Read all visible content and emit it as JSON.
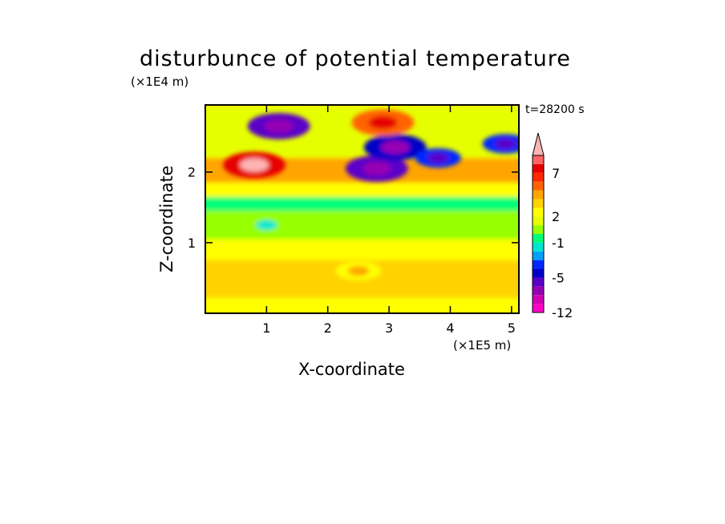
{
  "chart_data": {
    "type": "heatmap",
    "title": "disturbunce of potential temperature",
    "xlabel": "X-coordinate",
    "ylabel": "Z-coordinate",
    "x_unit": "(×1E5 m)",
    "y_unit": "(×1E4 m)",
    "time_label": "t=28200 s",
    "xlim": [
      0,
      5.12
    ],
    "ylim": [
      0,
      2.95
    ],
    "x_ticks": [
      "1",
      "2",
      "3",
      "4",
      "5"
    ],
    "y_ticks": [
      "1",
      "2"
    ],
    "colorbar": {
      "extend": "max",
      "levels": [
        -12,
        -10,
        -8,
        -6,
        -5,
        -4,
        -3,
        -2,
        -1,
        0,
        1,
        2,
        3,
        4,
        5,
        6,
        7,
        8,
        9,
        10
      ],
      "tick_labels": [
        {
          "value": -12,
          "label": "-12"
        },
        {
          "value": -5,
          "label": "-5"
        },
        {
          "value": -1,
          "label": "-1"
        },
        {
          "value": 2,
          "label": "2"
        },
        {
          "value": 7,
          "label": "7"
        }
      ],
      "colors": [
        "#ff00c8",
        "#d200b4",
        "#9600b4",
        "#5a00c8",
        "#0000c8",
        "#0028ff",
        "#00a0ff",
        "#00e6d2",
        "#00ff78",
        "#96ff00",
        "#e6ff00",
        "#ffff00",
        "#ffd200",
        "#ffa500",
        "#ff6400",
        "#ff2800",
        "#e60000",
        "#ff6464",
        "#ffb4b4"
      ]
    },
    "features": [
      {
        "x": 1.2,
        "z": 2.65,
        "value": -6
      },
      {
        "x": 2.8,
        "z": 2.05,
        "value": -6
      },
      {
        "x": 3.1,
        "z": 2.35,
        "value": -5
      },
      {
        "x": 3.8,
        "z": 2.2,
        "value": -4
      },
      {
        "x": 4.9,
        "z": 2.4,
        "value": -4
      },
      {
        "x": 0.8,
        "z": 2.1,
        "value": 7
      },
      {
        "x": 2.9,
        "z": 2.7,
        "value": 5
      },
      {
        "x": 1.0,
        "z": 1.25,
        "value": 0
      },
      {
        "x": 2.5,
        "z": 0.6,
        "value": 2
      }
    ]
  }
}
